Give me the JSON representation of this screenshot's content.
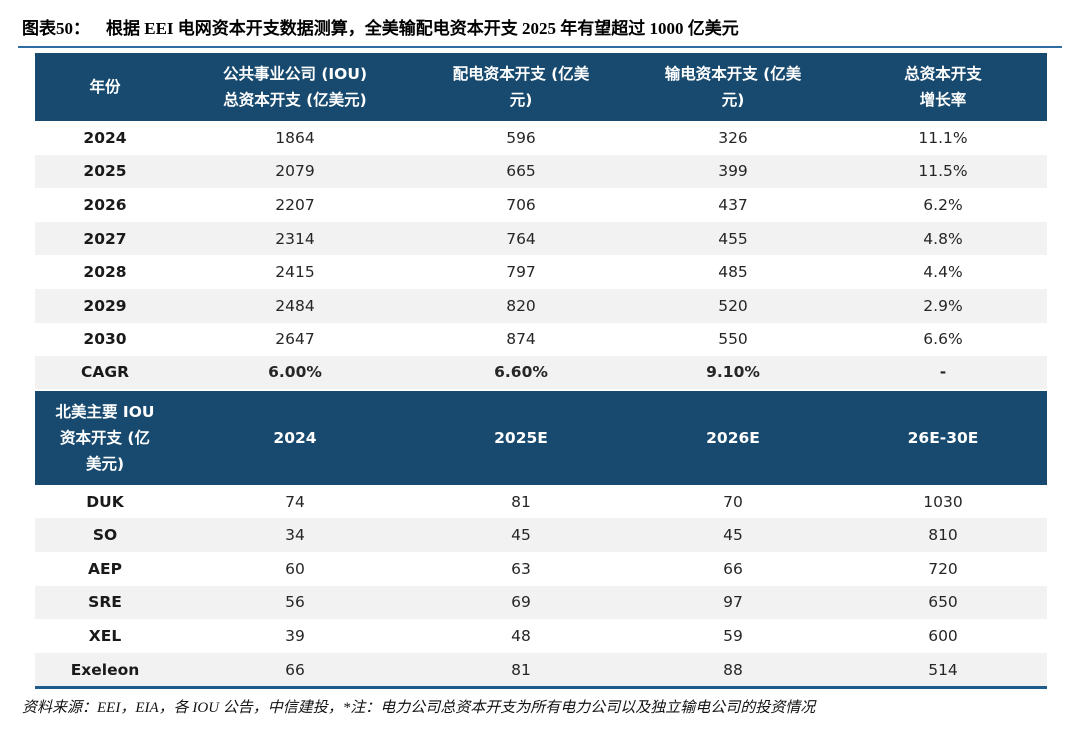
{
  "figure": {
    "label": "图表50：",
    "title": "根据 EEI 电网资本开支数据测算，全美输配电资本开支 2025 年有望超过 1000 亿美元"
  },
  "colors": {
    "header_bg": "#174A6E",
    "alt_row_bg": "#F2F2F2",
    "title_rule": "#2E6DA4",
    "bottom_rule": "#1F5C8C",
    "header_text": "#FFFFFF",
    "body_text": "#262626"
  },
  "footnote": "资料来源：EEI，EIA，各 IOU 公告，中信建投，*注：电力公司总资本开支为所有电力公司以及独立输电公司的投资情况",
  "chart_data": [
    {
      "type": "table",
      "name": "us-grid-capex",
      "title": "全美输配电资本开支测算（亿美元）",
      "columns": [
        "年份",
        "公共事业公司 (IOU) 总资本开支 (亿美元)",
        "配电资本开支 (亿美元)",
        "输电资本开支 (亿美元)",
        "总资本开支增长率"
      ],
      "header_lines": [
        [
          "年份"
        ],
        [
          "公共事业公司 (IOU)",
          "总资本开支 (亿美元)"
        ],
        [
          "配电资本开支 (亿美",
          "元)"
        ],
        [
          "输电资本开支 (亿美",
          "元)"
        ],
        [
          "总资本开支",
          "增长率"
        ]
      ],
      "rows": [
        [
          "2024",
          "1864",
          "596",
          "326",
          "11.1%"
        ],
        [
          "2025",
          "2079",
          "665",
          "399",
          "11.5%"
        ],
        [
          "2026",
          "2207",
          "706",
          "437",
          "6.2%"
        ],
        [
          "2027",
          "2314",
          "764",
          "455",
          "4.8%"
        ],
        [
          "2028",
          "2415",
          "797",
          "485",
          "4.4%"
        ],
        [
          "2029",
          "2484",
          "820",
          "520",
          "2.9%"
        ],
        [
          "2030",
          "2647",
          "874",
          "550",
          "6.6%"
        ],
        [
          "CAGR",
          "6.00%",
          "6.60%",
          "9.10%",
          "-"
        ]
      ],
      "bold_row_labels": [
        "CAGR"
      ]
    },
    {
      "type": "table",
      "name": "north-america-iou-capex",
      "title": "北美主要 IOU 资本开支（亿美元）",
      "columns": [
        "北美主要 IOU 资本开支 (亿美元)",
        "2024",
        "2025E",
        "2026E",
        "26E-30E"
      ],
      "header_lines": [
        [
          "北美主要 IOU",
          "资本开支 (亿",
          "美元)"
        ],
        [
          "2024"
        ],
        [
          "2025E"
        ],
        [
          "2026E"
        ],
        [
          "26E-30E"
        ]
      ],
      "rows": [
        [
          "DUK",
          "74",
          "81",
          "70",
          "1030"
        ],
        [
          "SO",
          "34",
          "45",
          "45",
          "810"
        ],
        [
          "AEP",
          "60",
          "63",
          "66",
          "720"
        ],
        [
          "SRE",
          "56",
          "69",
          "97",
          "650"
        ],
        [
          "XEL",
          "39",
          "48",
          "59",
          "600"
        ],
        [
          "Exeleon",
          "66",
          "81",
          "88",
          "514"
        ]
      ],
      "bold_row_labels": []
    }
  ]
}
